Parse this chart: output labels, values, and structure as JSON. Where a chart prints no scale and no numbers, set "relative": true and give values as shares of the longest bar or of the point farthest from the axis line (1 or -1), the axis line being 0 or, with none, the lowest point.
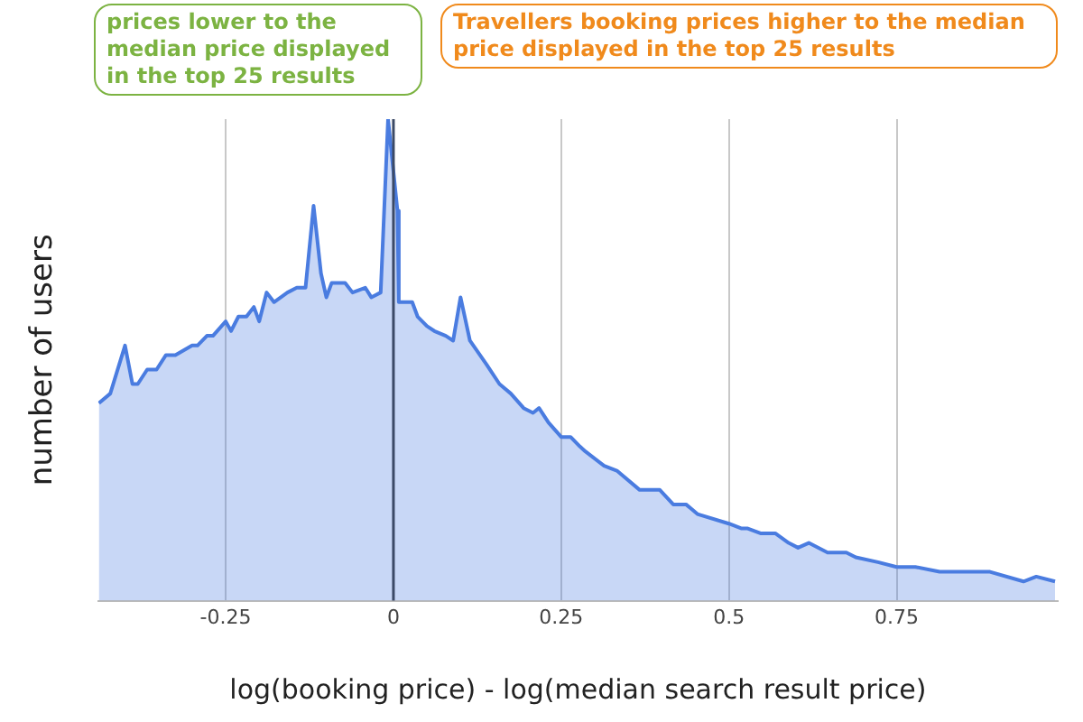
{
  "chart_data": {
    "type": "area",
    "relative": true,
    "xlabel": "log(booking price) - log(median search result price)",
    "ylabel": "number of users",
    "annotations": [
      "prices lower to the median price displayed in the top 25 results",
      "Travellers booking prices higher to the median price displayed in the top 25 results"
    ],
    "x": [
      -0.439,
      -0.422,
      -0.4,
      -0.389,
      -0.381,
      -0.367,
      -0.353,
      -0.339,
      -0.325,
      -0.3,
      -0.292,
      -0.278,
      -0.269,
      -0.25,
      -0.242,
      -0.231,
      -0.219,
      -0.208,
      -0.2,
      -0.189,
      -0.178,
      -0.158,
      -0.144,
      -0.131,
      -0.119,
      -0.108,
      -0.1,
      -0.092,
      -0.072,
      -0.061,
      -0.042,
      -0.033,
      -0.019,
      -0.008,
      0.006,
      0.008,
      0.028,
      0.036,
      0.05,
      0.061,
      0.078,
      0.089,
      0.1,
      0.114,
      0.139,
      0.158,
      0.175,
      0.194,
      0.208,
      0.217,
      0.231,
      0.25,
      0.264,
      0.278,
      0.286,
      0.314,
      0.333,
      0.367,
      0.381,
      0.397,
      0.417,
      0.436,
      0.453,
      0.5,
      0.519,
      0.528,
      0.547,
      0.569,
      0.589,
      0.603,
      0.619,
      0.647,
      0.675,
      0.689,
      0.722,
      0.75,
      0.778,
      0.814,
      0.853,
      0.889,
      0.939,
      0.958,
      0.986
    ],
    "series": [
      {
        "color": "#4a7ce0",
        "values": [
          0.41,
          0.43,
          0.53,
          0.45,
          0.45,
          0.48,
          0.48,
          0.51,
          0.51,
          0.53,
          0.53,
          0.55,
          0.55,
          0.58,
          0.56,
          0.59,
          0.59,
          0.61,
          0.58,
          0.64,
          0.62,
          0.64,
          0.65,
          0.65,
          0.82,
          0.68,
          0.63,
          0.66,
          0.66,
          0.64,
          0.65,
          0.63,
          0.64,
          1,
          0.81,
          0.62,
          0.62,
          0.59,
          0.57,
          0.56,
          0.55,
          0.54,
          0.63,
          0.54,
          0.49,
          0.45,
          0.43,
          0.4,
          0.39,
          0.4,
          0.37,
          0.34,
          0.34,
          0.32,
          0.31,
          0.28,
          0.27,
          0.23,
          0.23,
          0.23,
          0.2,
          0.2,
          0.18,
          0.16,
          0.15,
          0.15,
          0.14,
          0.14,
          0.12,
          0.11,
          0.12,
          0.1,
          0.1,
          0.09,
          0.08,
          0.07,
          0.07,
          0.06,
          0.06,
          0.06,
          0.04,
          0.05,
          0.04
        ]
      }
    ],
    "xlim": [
      -0.44,
      0.99
    ],
    "xticks": [
      -0.25,
      0,
      0.25,
      0.5,
      0.75
    ],
    "grid": "x",
    "ref_lines": [
      {
        "axis": "x",
        "value": 0,
        "color": "#3c4a66"
      }
    ]
  }
}
